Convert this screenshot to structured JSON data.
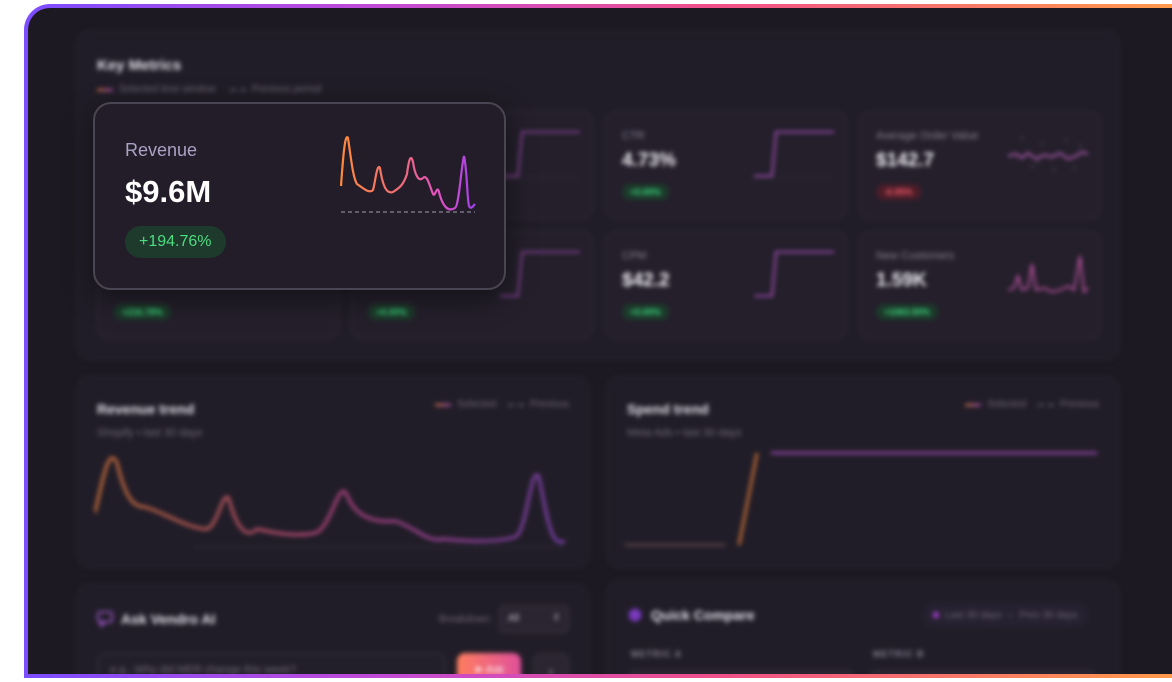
{
  "key_metrics": {
    "title": "Key Metrics",
    "legend_selected": "Selected time window",
    "legend_previous": "Previous period",
    "highlight": {
      "label": "Revenue",
      "value": "$9.6M",
      "change": "+194.76%"
    },
    "cards": [
      {
        "label": "CTR",
        "value": "4.73%",
        "change": "+0.00%",
        "trend": "up"
      },
      {
        "label": "Average Order Value",
        "value": "$142.7",
        "change": "-6.95%",
        "trend": "down"
      },
      {
        "label": "CPM",
        "value": "$42.2",
        "change": "+0.00%",
        "trend": "up"
      },
      {
        "label": "New Customers",
        "value": "1.59K",
        "change": "+1063.50%",
        "trend": "up"
      }
    ],
    "partial_badges": [
      "+216.78%",
      "+0.00%"
    ]
  },
  "revenue_trend": {
    "title": "Revenue trend",
    "subtitle": "Shopify • last 30 days",
    "legend_selected": "Selected",
    "legend_previous": "Previous"
  },
  "spend_trend": {
    "title": "Spend trend",
    "subtitle": "Meta Ads • last 30 days",
    "legend_selected": "Selected",
    "legend_previous": "Previous"
  },
  "ask_ai": {
    "title": "Ask Vendro AI",
    "breakdown_label": "Breakdown:",
    "breakdown_value": "All",
    "input_placeholder": "e.g., Why did MER change this week?",
    "ask_label": "Ask",
    "expand_icon": "chevron-right-icon"
  },
  "quick_compare": {
    "title": "Quick Compare",
    "toggle_a": "Last 30 days",
    "toggle_b": "Prev 30 days",
    "metric_a": "METRIC A",
    "metric_b": "METRIC B"
  },
  "colors": {
    "accent": "#c25bd8",
    "orange": "#ff8a3d",
    "positive": "#3ddc84",
    "negative": "#ff5a6e"
  }
}
